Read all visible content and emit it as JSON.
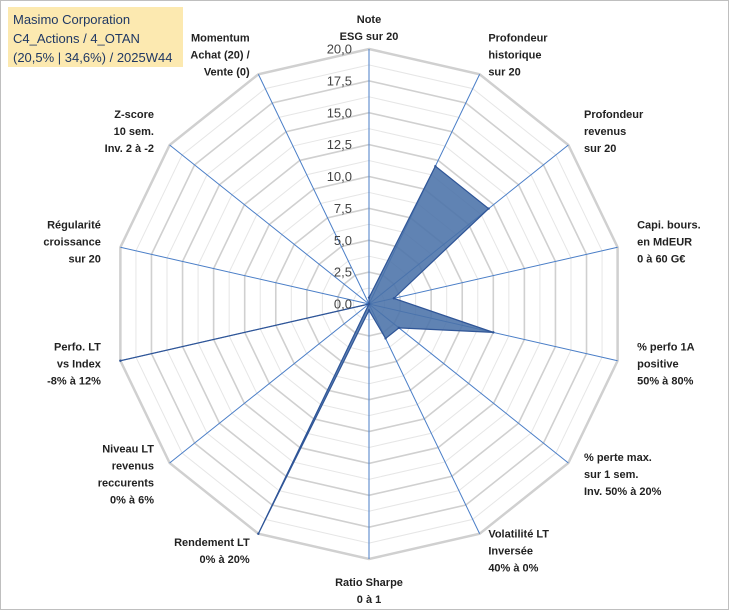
{
  "title": {
    "line1": "Masimo Corporation",
    "line2": "C4_Actions / 4_OTAN",
    "line3": "(20,5% | 34,6%) / 2025W44"
  },
  "chart_data": {
    "type": "radar",
    "axes": [
      [
        "Note",
        "ESG sur 20"
      ],
      [
        "Profondeur",
        "historique",
        "sur 20"
      ],
      [
        "Profondeur",
        "revenus",
        "sur 20"
      ],
      [
        "Capi. bours.",
        "en MdEUR",
        "0 à 60 G€"
      ],
      [
        "% perfo 1A",
        "positive",
        "50% à 80%"
      ],
      [
        "% perte max.",
        "sur 1 sem.",
        "Inv. 50% à 20%"
      ],
      [
        "Volatilité LT",
        "Inversée",
        "40% à 0%"
      ],
      [
        "Ratio Sharpe",
        "0 à 1"
      ],
      [
        "Rendement LT",
        "0% à 20%"
      ],
      [
        "Niveau LT",
        "revenus",
        "reccurents",
        "0% à 6%"
      ],
      [
        "Perfo. LT",
        "vs Index",
        "-8% à 12%"
      ],
      [
        "Régularité",
        "croissance",
        "sur 20"
      ],
      [
        "Z-score",
        "10 sem.",
        "Inv. 2 à -2"
      ],
      [
        "Momentum",
        "Achat (20) /",
        "Vente (0)"
      ]
    ],
    "series": [
      {
        "values": [
          0.5,
          12.0,
          12.0,
          2.0,
          10.0,
          3.0,
          3.0,
          0.5,
          20.0,
          0.0,
          20.0,
          0.0,
          0.0,
          0.0
        ],
        "color": "#4a72a8"
      }
    ],
    "rmin": 0,
    "rmax": 20,
    "ticks": [
      "0,0",
      "2,5",
      "5,0",
      "7,5",
      "10,0",
      "12,5",
      "15,0",
      "17,5",
      "20,0"
    ],
    "grid": true,
    "legend": "none"
  }
}
